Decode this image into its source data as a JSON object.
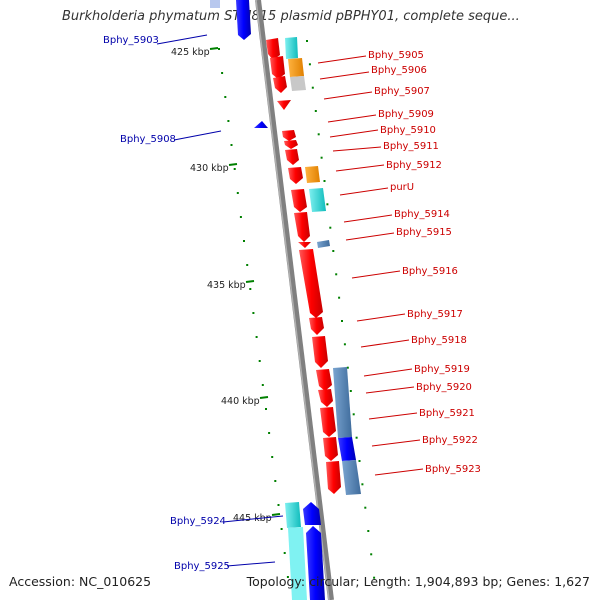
{
  "title": "Burkholderia phymatum STM815 plasmid pBPHY01, complete seque...",
  "footer": {
    "accession": "Accession: NC_010625",
    "summary": "Topology: circular; Length: 1,904,893 bp; Genes: 1,627"
  },
  "colors": {
    "forward_gene": "#ff0000",
    "reverse_gene": "#0000ff",
    "cyan_feature": "#00c4c4",
    "orange_feature": "#ff9900",
    "steelblue_feature": "#4f82b4",
    "backbone": "#808080",
    "label_red": "#cc0000",
    "label_blue": "#0000aa",
    "tick_green": "#008000"
  },
  "scale_labels": [
    "425 kbp",
    "430 kbp",
    "435 kbp",
    "440 kbp",
    "445 kbp"
  ],
  "right_labels": [
    "Bphy_5905",
    "Bphy_5906",
    "Bphy_5907",
    "Bphy_5909",
    "Bphy_5910",
    "Bphy_5911",
    "Bphy_5912",
    "purU",
    "Bphy_5914",
    "Bphy_5915",
    "Bphy_5916",
    "Bphy_5917",
    "Bphy_5918",
    "Bphy_5919",
    "Bphy_5920",
    "Bphy_5921",
    "Bphy_5922",
    "Bphy_5923"
  ],
  "left_labels": [
    "Bphy_5903",
    "Bphy_5908",
    "Bphy_5924",
    "Bphy_5925"
  ]
}
